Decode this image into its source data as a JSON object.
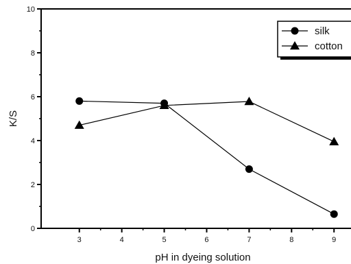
{
  "chart_data": {
    "type": "line",
    "xlabel": "pH in dyeing solution",
    "ylabel": "K/S",
    "x": [
      3,
      5,
      7,
      9
    ],
    "xticks": [
      3,
      4,
      5,
      6,
      7,
      8,
      9
    ],
    "yticks": [
      0,
      2,
      4,
      6,
      8,
      10
    ],
    "xlim": [
      2.1,
      9.4
    ],
    "ylim": [
      0,
      10
    ],
    "grid": false,
    "legend_position": "top-right",
    "series": [
      {
        "name": "silk",
        "marker": "circle",
        "color": "#000000",
        "values": [
          5.8,
          5.7,
          2.7,
          0.65
        ]
      },
      {
        "name": "cotton",
        "marker": "triangle",
        "color": "#000000",
        "values": [
          4.7,
          5.6,
          5.78,
          3.95
        ]
      }
    ]
  }
}
